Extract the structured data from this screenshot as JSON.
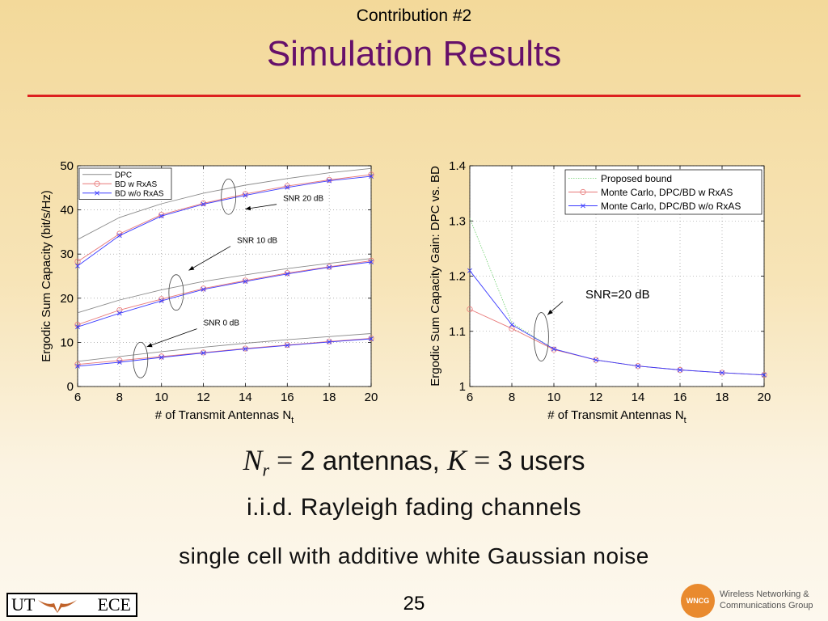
{
  "header": {
    "subtitle": "Contribution #2",
    "title": "Simulation Results",
    "rule_color": "#dd1f1f",
    "title_color": "#66106a"
  },
  "chart_data": [
    {
      "type": "line",
      "xlabel": "# of Transmit Antennas N",
      "xlabel_sub": "t",
      "ylabel": "Ergodic Sum Capacity (bit/s/Hz)",
      "xlim": [
        6,
        20
      ],
      "ylim": [
        0,
        50
      ],
      "xticks": [
        6,
        8,
        10,
        12,
        14,
        16,
        18,
        20
      ],
      "yticks": [
        0,
        10,
        20,
        30,
        40,
        50
      ],
      "grid": true,
      "legend_position": "top-left",
      "legend": [
        "DPC",
        "BD w RxAS",
        "BD w/o RxAS"
      ],
      "x": [
        6,
        8,
        10,
        12,
        14,
        16,
        18,
        20
      ],
      "series": [
        {
          "name": "DPC",
          "group": "SNR 20 dB",
          "style": "dpc",
          "values": [
            33.3,
            38.3,
            41.4,
            43.8,
            45.6,
            47.1,
            48.4,
            49.4
          ]
        },
        {
          "name": "BD w RxAS",
          "group": "SNR 20 dB",
          "style": "rxas",
          "values": [
            28.3,
            34.6,
            38.9,
            41.5,
            43.6,
            45.4,
            46.8,
            48.0
          ]
        },
        {
          "name": "BD w/o RxAS",
          "group": "SNR 20 dB",
          "style": "norxas",
          "values": [
            27.3,
            34.2,
            38.6,
            41.3,
            43.3,
            45.1,
            46.6,
            47.6
          ]
        },
        {
          "name": "DPC",
          "group": "SNR 10 dB",
          "style": "dpc",
          "values": [
            16.7,
            19.6,
            21.9,
            23.8,
            25.3,
            26.7,
            27.9,
            29.0
          ]
        },
        {
          "name": "BD w RxAS",
          "group": "SNR 10 dB",
          "style": "rxas",
          "values": [
            14.0,
            17.3,
            19.8,
            22.2,
            24.0,
            25.7,
            27.1,
            28.5
          ]
        },
        {
          "name": "BD w/o RxAS",
          "group": "SNR 10 dB",
          "style": "norxas",
          "values": [
            13.5,
            16.6,
            19.4,
            22.0,
            23.8,
            25.5,
            27.0,
            28.2
          ]
        },
        {
          "name": "DPC",
          "group": "SNR 0 dB",
          "style": "dpc",
          "values": [
            5.7,
            6.8,
            7.9,
            8.9,
            9.8,
            10.6,
            11.3,
            12.0
          ]
        },
        {
          "name": "BD w RxAS",
          "group": "SNR 0 dB",
          "style": "rxas",
          "values": [
            5.0,
            5.9,
            6.8,
            7.7,
            8.6,
            9.4,
            10.2,
            10.9
          ]
        },
        {
          "name": "BD w/o RxAS",
          "group": "SNR 0 dB",
          "style": "norxas",
          "values": [
            4.6,
            5.5,
            6.6,
            7.6,
            8.5,
            9.3,
            10.1,
            10.8
          ]
        }
      ],
      "annotations": [
        {
          "text": "SNR 20 dB",
          "x": 15.8,
          "y": 42.0,
          "arrow_to": [
            14.0,
            40.2
          ],
          "ellipse_at": [
            13.2,
            43.0
          ]
        },
        {
          "text": "SNR 10 dB",
          "x": 13.6,
          "y": 32.5,
          "arrow_to": [
            11.3,
            26.3
          ],
          "ellipse_at": [
            10.7,
            21.3
          ]
        },
        {
          "text": "SNR 0 dB",
          "x": 12.0,
          "y": 13.8,
          "arrow_to": [
            9.3,
            9.0
          ],
          "ellipse_at": [
            9.0,
            6.0
          ]
        }
      ]
    },
    {
      "type": "line",
      "xlabel": "# of Transmit Antennas N",
      "xlabel_sub": "t",
      "ylabel": "Ergodic Sum Capacity Gain: DPC vs. BD",
      "xlim": [
        6,
        20
      ],
      "ylim": [
        1.0,
        1.4
      ],
      "xticks": [
        6,
        8,
        10,
        12,
        14,
        16,
        18,
        20
      ],
      "yticks": [
        1,
        1.1,
        1.2,
        1.3,
        1.4
      ],
      "ytick_labels": [
        "1",
        "1.1",
        "1.2",
        "1.3",
        "1.4"
      ],
      "grid": true,
      "legend_position": "top-right",
      "legend": [
        "Proposed bound",
        "Monte Carlo, DPC/BD w RxAS",
        "Monte Carlo, DPC/BD w/o RxAS"
      ],
      "x": [
        6,
        8,
        10,
        12,
        14,
        16,
        18,
        20
      ],
      "series": [
        {
          "name": "Proposed bound",
          "style": "bound",
          "values": [
            1.305,
            1.115,
            1.068,
            1.048,
            1.037,
            1.03,
            1.025,
            1.021
          ]
        },
        {
          "name": "Monte Carlo, DPC/BD w RxAS",
          "style": "rxas",
          "values": [
            1.14,
            1.105,
            1.067,
            1.048,
            1.037,
            1.03,
            1.025,
            1.021
          ]
        },
        {
          "name": "Monte Carlo, DPC/BD w/o RxAS",
          "style": "norxas",
          "values": [
            1.21,
            1.112,
            1.068,
            1.048,
            1.037,
            1.03,
            1.025,
            1.021
          ]
        }
      ],
      "annotations": [
        {
          "text": "SNR=20 dB",
          "x": 11.5,
          "y": 1.16,
          "arrow_to": [
            9.7,
            1.13
          ],
          "ellipse_at": [
            9.4,
            1.09
          ]
        }
      ]
    }
  ],
  "captions": {
    "line1_math_a": "N",
    "line1_math_a_sub": "r",
    "line1_eq": " = ",
    "line1_text_a": "2 antennas,  ",
    "line1_math_b": "K",
    "line1_text_b": "3 users",
    "line2": "i.i.d. Rayleigh fading channels",
    "line3": "single cell with additive white Gaussian noise"
  },
  "footer": {
    "page_number": "25",
    "logo_left_a": "UT",
    "logo_left_b": "ECE",
    "logo_right_seal": "WNCG",
    "logo_right_line1": "Wireless Networking &",
    "logo_right_line2": "Communications Group"
  }
}
